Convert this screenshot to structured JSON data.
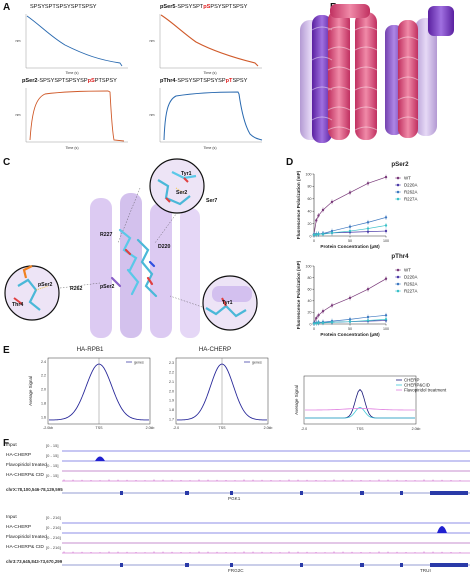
{
  "panels": {
    "a": "A",
    "b": "B",
    "c": "C",
    "d": "D",
    "e": "E",
    "f": "F"
  },
  "panel_a": {
    "plots": [
      {
        "prefix": "",
        "seq_before": "SPSYSPTSPSYSPTSPSY",
        "phos": "",
        "seq_after": "",
        "xlabel": "Time (s)",
        "ylabel": "nm"
      },
      {
        "prefix": "pSer5",
        "seq_before": "-SPSYSPT",
        "phos": "pS",
        "seq_after": "PSYSPTSPSY",
        "xlabel": "Time (s)",
        "ylabel": "nm"
      },
      {
        "prefix": "pSer2",
        "seq_before": "-SPSYSPTSPSYSP",
        "phos": "pS",
        "seq_after": "PTSPSY",
        "xlabel": "Time (s)",
        "ylabel": "nm"
      },
      {
        "prefix": "pThr4",
        "seq_before": "-SPSYSPTSPSYSP",
        "phos": "pT",
        "seq_after": "SPSY",
        "xlabel": "Time (s)",
        "ylabel": "nm"
      }
    ]
  },
  "panel_c": {
    "residues": [
      "Tyr1",
      "Ser2",
      "Ser7",
      "R227",
      "D220",
      "pSer2",
      "R262",
      "pSer2",
      "Thr4",
      "Tyr1"
    ]
  },
  "chart_data": [
    {
      "type": "scatter",
      "title": "pSer2",
      "xlabel": "Protein  Concentration (μM)",
      "ylabel": "Fluorescence Polarization (mP)",
      "xlim": [
        0,
        100
      ],
      "ylim": [
        0,
        100
      ],
      "x_ticks": [
        0,
        50,
        100
      ],
      "y_ticks": [
        0,
        20,
        40,
        60,
        80,
        100
      ],
      "legend_position": "right",
      "x": [
        0,
        3.125,
        6.25,
        12.5,
        25,
        50,
        75,
        100
      ],
      "series": [
        {
          "name": "WT",
          "color": "#7a3a7a",
          "values": [
            3,
            25,
            33,
            42,
            55,
            70,
            85,
            95
          ]
        },
        {
          "name": "D220A",
          "color": "#4a3aa8",
          "values": [
            2,
            3,
            3,
            4,
            5,
            6,
            7,
            8
          ]
        },
        {
          "name": "R262A",
          "color": "#3d78c0",
          "values": [
            2,
            3,
            3,
            4,
            8,
            15,
            22,
            30
          ]
        },
        {
          "name": "R227A",
          "color": "#39c0c8",
          "values": [
            2,
            2,
            3,
            3,
            5,
            8,
            12,
            17
          ]
        }
      ]
    },
    {
      "type": "scatter",
      "title": "pThr4",
      "xlabel": "Protein  Concentration (μM)",
      "ylabel": "Fluorescence Polarization (mP)",
      "xlim": [
        0,
        100
      ],
      "ylim": [
        0,
        100
      ],
      "x_ticks": [
        0,
        50,
        100
      ],
      "y_ticks": [
        0,
        20,
        40,
        60,
        80,
        100
      ],
      "legend_position": "right",
      "x": [
        0,
        3.125,
        6.25,
        12.5,
        25,
        50,
        75,
        100
      ],
      "series": [
        {
          "name": "WT",
          "color": "#7a3a7a",
          "values": [
            2,
            10,
            15,
            22,
            32,
            45,
            60,
            78
          ]
        },
        {
          "name": "D220A",
          "color": "#4a3aa8",
          "values": [
            1,
            2,
            2,
            3,
            3,
            4,
            5,
            6
          ]
        },
        {
          "name": "R262A",
          "color": "#3d78c0",
          "values": [
            1,
            2,
            3,
            3,
            5,
            8,
            12,
            15
          ]
        },
        {
          "name": "R227A",
          "color": "#39c0c8",
          "values": [
            1,
            1,
            2,
            2,
            3,
            4,
            6,
            8
          ]
        }
      ]
    },
    {
      "type": "line",
      "title": "HA-RPB1",
      "ylabel": "Average Signal",
      "x_ticks": [
        "-2.0kb",
        "TSS",
        "2.0kb"
      ],
      "y_ticks": [
        1.6,
        1.8,
        2.0,
        2.2,
        2.4
      ],
      "ylim": [
        1.5,
        2.45
      ],
      "legend": [
        "genes"
      ],
      "series": [
        {
          "name": "genes",
          "color": "#2a2a9a"
        }
      ]
    },
    {
      "type": "line",
      "title": "HA-CHERP",
      "ylabel": "",
      "x_ticks": [
        "-2.0",
        "TSS",
        "2.0kb"
      ],
      "y_ticks": [
        1.7,
        1.8,
        1.9,
        2.0,
        2.1,
        2.2,
        2.3
      ],
      "ylim": [
        1.65,
        2.35
      ],
      "legend": [
        "genes"
      ],
      "series": [
        {
          "name": "genes",
          "color": "#2a2a9a"
        }
      ]
    },
    {
      "type": "line",
      "title": "",
      "ylabel": "Average Signal",
      "x_ticks": [
        "-2.0",
        "TSS",
        "2.0kb"
      ],
      "legend": [
        "CHERP",
        "CHERP&CID",
        "Flavopiridol treatment"
      ],
      "series": [
        {
          "name": "CHERP",
          "color": "#1a1a7a"
        },
        {
          "name": "CHERP&CID",
          "color": "#3ec8d8"
        },
        {
          "name": "Flavopiridol treatment",
          "color": "#e080e0"
        }
      ]
    }
  ],
  "panel_f": {
    "locus1": {
      "tracks": [
        {
          "label": "Input",
          "range": "[0 - 15]"
        },
        {
          "label": "HA-CHERP",
          "range": "[0 - 15]"
        },
        {
          "label": "Flavopiridol treated",
          "range": "[0 - 15]"
        },
        {
          "label": "HA-CHERP& CID",
          "range": "[0 - 15]"
        }
      ],
      "coord": "chrX:78,100,546-78,129,595",
      "gene": "PGK1"
    },
    "locus2": {
      "tracks": [
        {
          "label": "Input",
          "range": "[0 - 216]"
        },
        {
          "label": "HA-CHERP",
          "range": "[0 - 216]"
        },
        {
          "label": "Flavopiridol treated",
          "range": "[0 - 216]"
        },
        {
          "label": "HA-CHERP& CID",
          "range": "[0 - 216]"
        }
      ],
      "coord": "chr3:73,645,843-73,670,299",
      "gene": "FRG2C",
      "gene2": "TRUI"
    }
  },
  "colors": {
    "orange_curve": "#d05a2a",
    "blue_curve": "#2a6ab0",
    "track_blue": "#2020d0",
    "track_purple": "#9020a0",
    "track_magenta": "#c040c0",
    "helix_pink": "#e85a8a",
    "helix_purple": "#8a3ad0",
    "helix_lavender": "#c0a0e8"
  }
}
